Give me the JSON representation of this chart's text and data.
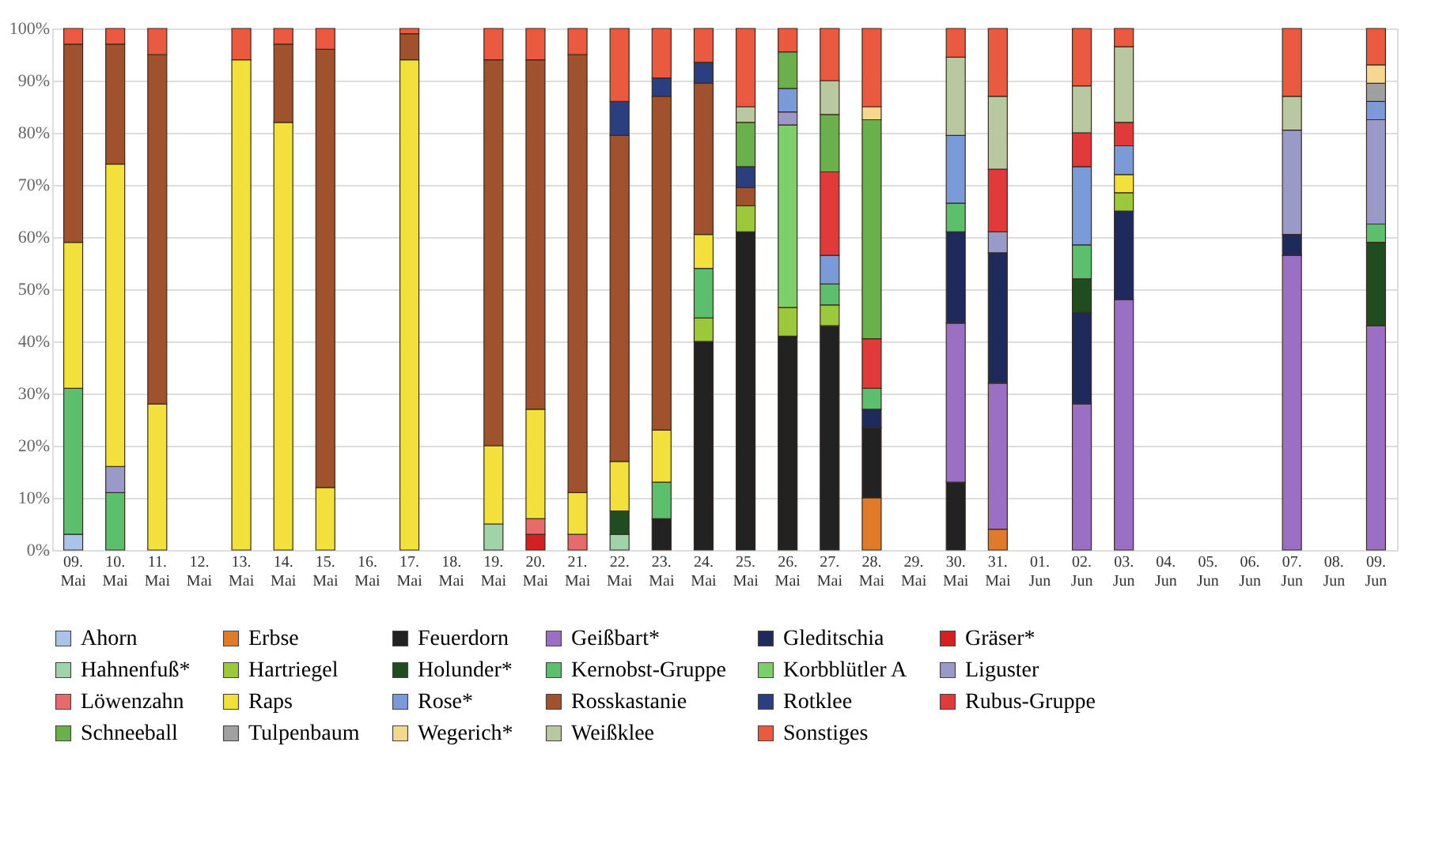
{
  "chart_data": {
    "type": "bar",
    "stacked": true,
    "legend": "bottom",
    "grid": "y",
    "categories": [
      "09. Mai",
      "10. Mai",
      "11. Mai",
      "12. Mai",
      "13. Mai",
      "14. Mai",
      "15. Mai",
      "16. Mai",
      "17. Mai",
      "18. Mai",
      "19. Mai",
      "20. Mai",
      "21. Mai",
      "22. Mai",
      "23. Mai",
      "24. Mai",
      "25. Mai",
      "26. Mai",
      "27. Mai",
      "28. Mai",
      "29. Mai",
      "30. Mai",
      "31. Mai",
      "01. Jun",
      "02. Jun",
      "03. Jun",
      "04. Jun",
      "05. Jun",
      "06. Jun",
      "07. Jun",
      "08. Jun",
      "09. Jun"
    ],
    "ylim": [
      0,
      100
    ],
    "yticks": [
      {
        "value": 0,
        "label": "0%"
      },
      {
        "value": 10,
        "label": "10%"
      },
      {
        "value": 20,
        "label": "20%"
      },
      {
        "value": 30,
        "label": "30%"
      },
      {
        "value": 40,
        "label": "40%"
      },
      {
        "value": 50,
        "label": "50%"
      },
      {
        "value": 60,
        "label": "60%"
      },
      {
        "value": 70,
        "label": "70%"
      },
      {
        "value": 80,
        "label": "80%"
      },
      {
        "value": 90,
        "label": "90%"
      },
      {
        "value": 100,
        "label": "100%"
      }
    ],
    "series": [
      {
        "name": "Ahorn",
        "color": "#a9c4e8",
        "values": [
          3,
          null,
          null,
          null,
          null,
          null,
          null,
          null,
          null,
          null,
          null,
          null,
          null,
          null,
          null,
          null,
          null,
          null,
          null,
          null,
          null,
          null,
          null,
          null,
          null,
          null,
          null,
          null,
          null,
          null,
          null,
          null
        ]
      },
      {
        "name": "Erbse",
        "color": "#e07b2a",
        "values": [
          null,
          null,
          null,
          null,
          null,
          null,
          null,
          null,
          null,
          null,
          null,
          null,
          null,
          null,
          null,
          null,
          null,
          null,
          null,
          10,
          null,
          null,
          4,
          null,
          null,
          null,
          null,
          null,
          null,
          null,
          null,
          null
        ]
      },
      {
        "name": "Feuerdorn",
        "color": "#222222",
        "values": [
          null,
          null,
          null,
          null,
          null,
          null,
          null,
          null,
          null,
          null,
          null,
          null,
          null,
          null,
          6,
          40,
          61,
          41,
          43,
          13.5,
          null,
          13,
          null,
          null,
          null,
          null,
          null,
          null,
          null,
          null,
          null,
          null
        ]
      },
      {
        "name": "Geißbart*",
        "color": "#9b6fc4",
        "values": [
          null,
          null,
          null,
          null,
          null,
          null,
          null,
          null,
          null,
          null,
          null,
          null,
          null,
          null,
          null,
          null,
          null,
          null,
          null,
          null,
          null,
          30.5,
          28,
          null,
          28,
          48,
          null,
          null,
          null,
          56.5,
          null,
          43
        ]
      },
      {
        "name": "Gleditschia",
        "color": "#1f2a5c",
        "values": [
          null,
          null,
          null,
          null,
          null,
          null,
          null,
          null,
          null,
          null,
          null,
          null,
          null,
          null,
          null,
          null,
          null,
          null,
          null,
          3.5,
          null,
          17.5,
          25,
          null,
          17.5,
          17,
          null,
          null,
          null,
          4,
          null,
          null
        ]
      },
      {
        "name": "Gräser*",
        "color": "#d42020",
        "values": [
          null,
          null,
          null,
          null,
          null,
          null,
          null,
          null,
          null,
          null,
          null,
          3,
          null,
          null,
          null,
          null,
          null,
          null,
          null,
          null,
          null,
          null,
          null,
          null,
          null,
          null,
          null,
          null,
          null,
          null,
          null,
          null
        ]
      },
      {
        "name": "Hahnenfuß*",
        "color": "#9fd4a8",
        "values": [
          null,
          null,
          null,
          null,
          null,
          null,
          null,
          null,
          null,
          null,
          5,
          null,
          null,
          3,
          null,
          null,
          null,
          null,
          null,
          null,
          null,
          null,
          null,
          null,
          null,
          null,
          null,
          null,
          null,
          null,
          null,
          null
        ]
      },
      {
        "name": "Hartriegel",
        "color": "#9cc83c",
        "values": [
          null,
          null,
          null,
          null,
          null,
          null,
          null,
          null,
          null,
          null,
          null,
          null,
          null,
          null,
          null,
          4.5,
          5,
          5.5,
          4,
          null,
          null,
          null,
          null,
          null,
          null,
          3.5,
          null,
          null,
          null,
          null,
          null,
          null
        ]
      },
      {
        "name": "Holunder*",
        "color": "#1f4d1f",
        "values": [
          null,
          null,
          null,
          null,
          null,
          null,
          null,
          null,
          null,
          null,
          null,
          null,
          null,
          4.5,
          null,
          null,
          null,
          null,
          null,
          null,
          null,
          null,
          null,
          null,
          6.5,
          null,
          null,
          null,
          null,
          null,
          null,
          16
        ]
      },
      {
        "name": "Kernobst-Gruppe",
        "color": "#5cbf6e",
        "values": [
          28,
          11,
          null,
          null,
          null,
          null,
          null,
          null,
          null,
          null,
          null,
          null,
          null,
          null,
          7,
          9.5,
          null,
          null,
          4,
          4,
          null,
          5.5,
          null,
          null,
          6.5,
          null,
          null,
          null,
          null,
          null,
          null,
          3.5
        ]
      },
      {
        "name": "Korbblütler A",
        "color": "#7ccf6a",
        "values": [
          null,
          null,
          null,
          null,
          null,
          null,
          null,
          null,
          null,
          null,
          null,
          null,
          null,
          null,
          null,
          null,
          null,
          35,
          null,
          null,
          null,
          null,
          null,
          null,
          null,
          null,
          null,
          null,
          null,
          null,
          null,
          null
        ]
      },
      {
        "name": "Liguster",
        "color": "#9a9ac8",
        "values": [
          null,
          5,
          null,
          null,
          null,
          null,
          null,
          null,
          null,
          null,
          null,
          null,
          null,
          null,
          null,
          null,
          null,
          2.5,
          null,
          null,
          null,
          null,
          4,
          null,
          null,
          null,
          null,
          null,
          null,
          20,
          null,
          20
        ]
      },
      {
        "name": "Löwenzahn",
        "color": "#e86a6a",
        "values": [
          null,
          null,
          null,
          null,
          null,
          null,
          null,
          null,
          null,
          null,
          null,
          3,
          3,
          null,
          null,
          null,
          null,
          null,
          null,
          null,
          null,
          null,
          null,
          null,
          null,
          null,
          null,
          null,
          null,
          null,
          null,
          null
        ]
      },
      {
        "name": "Raps",
        "color": "#f2e13a",
        "values": [
          28,
          58,
          28,
          null,
          94,
          82,
          12,
          null,
          94,
          null,
          15,
          21,
          8,
          9.5,
          10,
          6.5,
          null,
          null,
          null,
          null,
          null,
          null,
          null,
          null,
          null,
          3.5,
          null,
          null,
          null,
          null,
          null,
          null
        ]
      },
      {
        "name": "Rose*",
        "color": "#7a9ad8",
        "values": [
          null,
          null,
          null,
          null,
          null,
          null,
          null,
          null,
          null,
          null,
          null,
          null,
          null,
          null,
          null,
          null,
          null,
          4.5,
          5.5,
          null,
          null,
          13,
          null,
          null,
          15,
          5.5,
          null,
          null,
          null,
          null,
          null,
          3.5
        ]
      },
      {
        "name": "Rosskastanie",
        "color": "#a0522d",
        "values": [
          38,
          23,
          67,
          null,
          null,
          15,
          84,
          null,
          5,
          null,
          74,
          67,
          84,
          62.5,
          64,
          29,
          3.5,
          null,
          null,
          null,
          null,
          null,
          null,
          null,
          null,
          null,
          null,
          null,
          null,
          null,
          null,
          null
        ]
      },
      {
        "name": "Rotklee",
        "color": "#2a3e80",
        "values": [
          null,
          null,
          null,
          null,
          null,
          null,
          null,
          null,
          null,
          null,
          null,
          null,
          null,
          6.5,
          3.5,
          4,
          4,
          null,
          null,
          null,
          null,
          null,
          null,
          null,
          null,
          null,
          null,
          null,
          null,
          null,
          null,
          null
        ]
      },
      {
        "name": "Rubus-Gruppe",
        "color": "#e03a3a",
        "values": [
          null,
          null,
          null,
          null,
          null,
          null,
          null,
          null,
          null,
          null,
          null,
          null,
          null,
          null,
          null,
          null,
          null,
          null,
          16,
          9.5,
          null,
          null,
          12,
          null,
          6.5,
          4.5,
          null,
          null,
          null,
          null,
          null,
          null
        ]
      },
      {
        "name": "Schneeball",
        "color": "#6ab04c",
        "values": [
          null,
          null,
          null,
          null,
          null,
          null,
          null,
          null,
          null,
          null,
          null,
          null,
          null,
          null,
          null,
          null,
          8.5,
          7,
          11,
          42,
          null,
          null,
          null,
          null,
          null,
          null,
          null,
          null,
          null,
          null,
          null,
          null
        ]
      },
      {
        "name": "Tulpenbaum",
        "color": "#a0a0a0",
        "values": [
          null,
          null,
          null,
          null,
          null,
          null,
          null,
          null,
          null,
          null,
          null,
          null,
          null,
          null,
          null,
          null,
          null,
          null,
          null,
          null,
          null,
          null,
          null,
          null,
          null,
          null,
          null,
          null,
          null,
          null,
          null,
          3.5
        ]
      },
      {
        "name": "Wegerich*",
        "color": "#f5d890",
        "values": [
          null,
          null,
          null,
          null,
          null,
          null,
          null,
          null,
          null,
          null,
          null,
          null,
          null,
          null,
          null,
          null,
          null,
          null,
          null,
          2.5,
          null,
          null,
          null,
          null,
          null,
          null,
          null,
          null,
          null,
          null,
          null,
          3.5
        ]
      },
      {
        "name": "Weißklee",
        "color": "#b8c8a0",
        "values": [
          null,
          null,
          null,
          null,
          null,
          null,
          null,
          null,
          null,
          null,
          null,
          null,
          null,
          null,
          null,
          null,
          3,
          null,
          6.5,
          null,
          null,
          15,
          14,
          null,
          9,
          14.5,
          null,
          null,
          null,
          6.5,
          null,
          null
        ]
      },
      {
        "name": "Sonstiges",
        "color": "#ea5a40",
        "values": [
          3,
          3,
          5,
          null,
          6,
          3,
          4,
          null,
          1,
          null,
          6,
          6,
          5,
          14,
          9.5,
          6.5,
          15,
          4.5,
          10,
          15,
          null,
          5.5,
          13,
          null,
          11,
          3.5,
          null,
          null,
          null,
          13,
          null,
          7
        ]
      }
    ]
  }
}
